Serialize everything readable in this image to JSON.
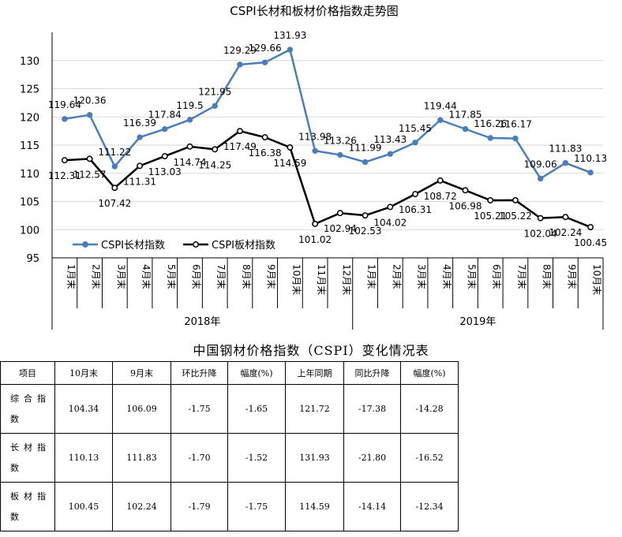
{
  "chart_data": {
    "type": "line",
    "title": "CSPI长材和板材价格指数走势图",
    "categories": [
      "1月末",
      "2月末",
      "3月末",
      "4月末",
      "5月末",
      "6月末",
      "7月末",
      "8月末",
      "9月末",
      "10月末",
      "11月末",
      "12月末",
      "1月末",
      "2月末",
      "3月末",
      "4月末",
      "5月末",
      "6月末",
      "7月末",
      "8月末",
      "9月末",
      "10月末"
    ],
    "year_groups": [
      {
        "label": "2018年",
        "start": 0,
        "count": 12
      },
      {
        "label": "2019年",
        "start": 12,
        "count": 10
      }
    ],
    "ylim": [
      95,
      135
    ],
    "yticks": [
      95,
      100,
      105,
      110,
      115,
      120,
      125,
      130
    ],
    "grid": "horizontal",
    "legend": "bottom-left",
    "series": [
      {
        "name": "CSPI长材指数",
        "color": "#4a7ebb",
        "values": [
          119.64,
          120.36,
          111.22,
          116.39,
          117.84,
          119.5,
          121.95,
          129.29,
          129.66,
          131.93,
          113.98,
          113.26,
          111.99,
          113.43,
          115.45,
          119.44,
          117.85,
          116.26,
          116.17,
          109.06,
          111.83,
          110.13
        ],
        "labels": [
          "119.64",
          "120.36",
          "111.22",
          "116.39",
          "117.84",
          "119.5",
          "121.95",
          "129.29",
          "129.66",
          "131.93",
          "113.98",
          "113.26",
          "111.99",
          "113.43",
          "115.45",
          "119.44",
          "117.85",
          "116.26",
          "116.17",
          "109.06",
          "111.83",
          "110.13"
        ]
      },
      {
        "name": "CSPI板材指数",
        "color": "#000000",
        "values": [
          112.31,
          112.57,
          107.42,
          111.31,
          113.03,
          114.74,
          114.25,
          117.49,
          116.38,
          114.59,
          101.02,
          102.94,
          102.53,
          104.02,
          106.31,
          108.72,
          106.98,
          105.21,
          105.22,
          102.04,
          102.24,
          100.45
        ],
        "labels": [
          "112.31",
          "112.57",
          "107.42",
          "111.31",
          "113.03",
          "114.74",
          "114.25",
          "117.49",
          "116.38",
          "114.59",
          "101.02",
          "102.94",
          "102.53",
          "104.02",
          "106.31",
          "108.72",
          "106.98",
          "105.21",
          "105.22",
          "102.04",
          "102.24",
          "100.45"
        ]
      }
    ]
  },
  "table": {
    "title": "中国钢材价格指数（CSPI）变化情况表",
    "headers": [
      "项目",
      "10月末",
      "9月末",
      "环比升降",
      "幅度(%)",
      "上年同期",
      "同比升降",
      "幅度(%)"
    ],
    "rows": [
      {
        "name": "综合指数",
        "cells": [
          "104.34",
          "106.09",
          "-1.75",
          "-1.65",
          "121.72",
          "-17.38",
          "-14.28"
        ]
      },
      {
        "name": "长材指数",
        "cells": [
          "110.13",
          "111.83",
          "-1.70",
          "-1.52",
          "131.93",
          "-21.80",
          "-16.52"
        ]
      },
      {
        "name": "板材指数",
        "cells": [
          "100.45",
          "102.24",
          "-1.79",
          "-1.75",
          "114.59",
          "-14.14",
          "-12.34"
        ]
      }
    ]
  }
}
